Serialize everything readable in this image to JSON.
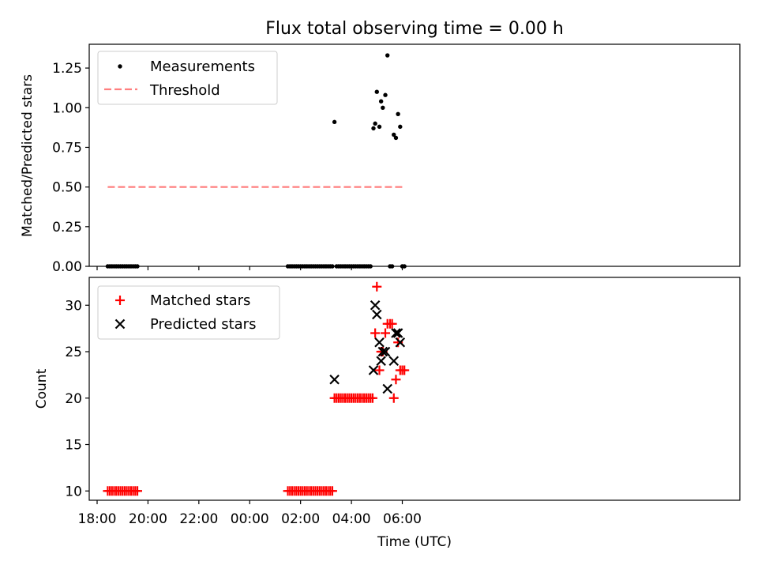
{
  "title": "Flux total observing time = 0.00 h",
  "chart_data": [
    {
      "type": "scatter",
      "ylabel": "Matched/Predicted stars",
      "ylim": [
        0,
        1.4
      ],
      "yticks": [
        "0.00",
        "0.25",
        "0.50",
        "0.75",
        "1.00",
        "1.25"
      ],
      "ytick_values": [
        0,
        0.25,
        0.5,
        0.75,
        1.0,
        1.25
      ],
      "legend_position": "top-left",
      "grid": false,
      "series": [
        {
          "name": "Measurements",
          "marker": "dot",
          "color": "#000000",
          "points": [
            [
              "18:25",
              0
            ],
            [
              "18:30",
              0
            ],
            [
              "18:35",
              0
            ],
            [
              "18:40",
              0
            ],
            [
              "18:45",
              0
            ],
            [
              "18:50",
              0
            ],
            [
              "18:55",
              0
            ],
            [
              "19:00",
              0
            ],
            [
              "19:05",
              0
            ],
            [
              "19:10",
              0
            ],
            [
              "19:15",
              0
            ],
            [
              "19:20",
              0
            ],
            [
              "19:25",
              0
            ],
            [
              "19:30",
              0
            ],
            [
              "19:35",
              0
            ],
            [
              "01:30",
              0
            ],
            [
              "01:35",
              0
            ],
            [
              "01:40",
              0
            ],
            [
              "01:45",
              0
            ],
            [
              "01:50",
              0
            ],
            [
              "01:55",
              0
            ],
            [
              "02:00",
              0
            ],
            [
              "02:05",
              0
            ],
            [
              "02:10",
              0
            ],
            [
              "02:15",
              0
            ],
            [
              "02:20",
              0
            ],
            [
              "02:25",
              0
            ],
            [
              "02:30",
              0
            ],
            [
              "02:35",
              0
            ],
            [
              "02:40",
              0
            ],
            [
              "02:45",
              0
            ],
            [
              "02:50",
              0
            ],
            [
              "02:55",
              0
            ],
            [
              "03:00",
              0
            ],
            [
              "03:05",
              0
            ],
            [
              "03:10",
              0
            ],
            [
              "03:15",
              0
            ],
            [
              "03:20",
              0.91
            ],
            [
              "03:25",
              0
            ],
            [
              "03:30",
              0
            ],
            [
              "03:35",
              0
            ],
            [
              "03:40",
              0
            ],
            [
              "03:45",
              0
            ],
            [
              "03:50",
              0
            ],
            [
              "03:55",
              0
            ],
            [
              "04:00",
              0
            ],
            [
              "04:05",
              0
            ],
            [
              "04:10",
              0
            ],
            [
              "04:15",
              0
            ],
            [
              "04:20",
              0
            ],
            [
              "04:25",
              0
            ],
            [
              "04:30",
              0
            ],
            [
              "04:35",
              0
            ],
            [
              "04:40",
              0
            ],
            [
              "04:45",
              0
            ],
            [
              "04:52",
              0.87
            ],
            [
              "04:56",
              0.9
            ],
            [
              "05:00",
              1.1
            ],
            [
              "05:06",
              0.88
            ],
            [
              "05:10",
              1.04
            ],
            [
              "05:14",
              1.0
            ],
            [
              "05:20",
              1.08
            ],
            [
              "05:25",
              1.33
            ],
            [
              "05:31",
              0
            ],
            [
              "05:36",
              0
            ],
            [
              "05:40",
              0.83
            ],
            [
              "05:45",
              0.81
            ],
            [
              "05:50",
              0.96
            ],
            [
              "05:55",
              0.88
            ],
            [
              "06:00",
              0
            ],
            [
              "06:05",
              0
            ]
          ]
        },
        {
          "name": "Threshold",
          "marker": "dashed-line",
          "color": "#ff7f7f",
          "points": [
            [
              "18:25",
              0.5
            ],
            [
              "06:05",
              0.5
            ]
          ]
        }
      ]
    },
    {
      "type": "scatter",
      "xlabel": "Time (UTC)",
      "ylabel": "Count",
      "ylim": [
        9,
        33
      ],
      "yticks": [
        "10",
        "15",
        "20",
        "25",
        "30"
      ],
      "ytick_values": [
        10,
        15,
        20,
        25,
        30
      ],
      "xticks": [
        "18:00",
        "20:00",
        "22:00",
        "00:00",
        "02:00",
        "04:00",
        "06:00"
      ],
      "legend_position": "top-left",
      "grid": false,
      "series": [
        {
          "name": "Matched stars",
          "marker": "plus",
          "color": "#ff0000",
          "points": [
            [
              "18:25",
              10
            ],
            [
              "18:30",
              10
            ],
            [
              "18:35",
              10
            ],
            [
              "18:40",
              10
            ],
            [
              "18:45",
              10
            ],
            [
              "18:50",
              10
            ],
            [
              "18:55",
              10
            ],
            [
              "19:00",
              10
            ],
            [
              "19:05",
              10
            ],
            [
              "19:10",
              10
            ],
            [
              "19:15",
              10
            ],
            [
              "19:20",
              10
            ],
            [
              "19:25",
              10
            ],
            [
              "19:30",
              10
            ],
            [
              "19:35",
              10
            ],
            [
              "01:30",
              10
            ],
            [
              "01:35",
              10
            ],
            [
              "01:40",
              10
            ],
            [
              "01:45",
              10
            ],
            [
              "01:50",
              10
            ],
            [
              "01:55",
              10
            ],
            [
              "02:00",
              10
            ],
            [
              "02:05",
              10
            ],
            [
              "02:10",
              10
            ],
            [
              "02:15",
              10
            ],
            [
              "02:20",
              10
            ],
            [
              "02:25",
              10
            ],
            [
              "02:30",
              10
            ],
            [
              "02:35",
              10
            ],
            [
              "02:40",
              10
            ],
            [
              "02:45",
              10
            ],
            [
              "02:50",
              10
            ],
            [
              "02:55",
              10
            ],
            [
              "03:00",
              10
            ],
            [
              "03:05",
              10
            ],
            [
              "03:10",
              10
            ],
            [
              "03:15",
              10
            ],
            [
              "03:20",
              20
            ],
            [
              "03:25",
              20
            ],
            [
              "03:30",
              20
            ],
            [
              "03:35",
              20
            ],
            [
              "03:40",
              20
            ],
            [
              "03:45",
              20
            ],
            [
              "03:50",
              20
            ],
            [
              "03:55",
              20
            ],
            [
              "04:00",
              20
            ],
            [
              "04:05",
              20
            ],
            [
              "04:10",
              20
            ],
            [
              "04:15",
              20
            ],
            [
              "04:20",
              20
            ],
            [
              "04:25",
              20
            ],
            [
              "04:30",
              20
            ],
            [
              "04:35",
              20
            ],
            [
              "04:40",
              20
            ],
            [
              "04:45",
              20
            ],
            [
              "04:50",
              20
            ],
            [
              "04:56",
              27
            ],
            [
              "05:00",
              32
            ],
            [
              "05:06",
              23
            ],
            [
              "05:10",
              25
            ],
            [
              "05:14",
              25
            ],
            [
              "05:20",
              27
            ],
            [
              "05:25",
              28
            ],
            [
              "05:31",
              28
            ],
            [
              "05:36",
              28
            ],
            [
              "05:40",
              20
            ],
            [
              "05:45",
              22
            ],
            [
              "05:50",
              26
            ],
            [
              "05:55",
              23
            ],
            [
              "06:00",
              23
            ],
            [
              "06:05",
              23
            ]
          ]
        },
        {
          "name": "Predicted stars",
          "marker": "x",
          "color": "#000000",
          "points": [
            [
              "03:20",
              22
            ],
            [
              "04:52",
              23
            ],
            [
              "04:56",
              30
            ],
            [
              "05:00",
              29
            ],
            [
              "05:06",
              26
            ],
            [
              "05:10",
              24
            ],
            [
              "05:14",
              25
            ],
            [
              "05:20",
              25
            ],
            [
              "05:25",
              21
            ],
            [
              "05:40",
              24
            ],
            [
              "05:45",
              27
            ],
            [
              "05:50",
              27
            ],
            [
              "05:55",
              26
            ]
          ]
        }
      ]
    }
  ]
}
